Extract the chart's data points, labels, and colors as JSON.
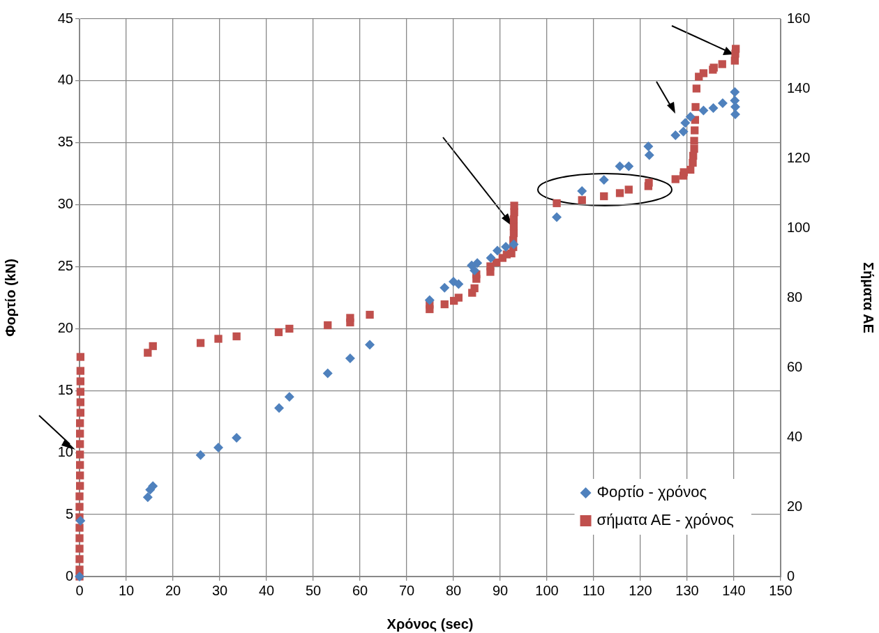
{
  "chart_data": {
    "type": "scatter",
    "xlabel": "Χρόνος (sec)",
    "ylabel": "Φορτίο (kN)",
    "y2label": "Σήματα ΑΕ",
    "xlim": [
      0,
      150
    ],
    "xticks": [
      0,
      10,
      20,
      30,
      40,
      50,
      60,
      70,
      80,
      90,
      100,
      110,
      120,
      130,
      140,
      150
    ],
    "ylim": [
      0,
      45
    ],
    "yticks": [
      0,
      5,
      10,
      15,
      20,
      25,
      30,
      35,
      40,
      45
    ],
    "y2lim": [
      0,
      160
    ],
    "y2ticks": [
      0,
      20,
      40,
      60,
      80,
      100,
      120,
      140,
      160
    ],
    "grid": true,
    "legend": "bottom right",
    "series": [
      {
        "name": "Φορτίο - χρόνος",
        "color": "#4f81bd",
        "marker": "diamond",
        "x": [
          0,
          0.2,
          14.6,
          15.1,
          15.7,
          25.9,
          29.7,
          33.6,
          42.7,
          44.9,
          53.1,
          57.9,
          62.1,
          74.9,
          78.1,
          80,
          81.1,
          83.9,
          84.5,
          85.1,
          88,
          89.4,
          91.2,
          92.9,
          102.1,
          107.5,
          112.2,
          115.6,
          117.5,
          121.7,
          121.9,
          127.5,
          129.2,
          129.6,
          130.7,
          133.5,
          135.6,
          137.6,
          140.2,
          140.2,
          140.3,
          140.3
        ],
        "values": [
          0,
          4.5,
          6.4,
          7.0,
          7.3,
          9.8,
          10.4,
          11.2,
          13.6,
          14.5,
          16.4,
          17.6,
          18.7,
          22.3,
          23.3,
          23.8,
          23.6,
          25.1,
          24.7,
          25.3,
          25.7,
          26.3,
          26.6,
          26.8,
          29.0,
          31.1,
          32.0,
          33.1,
          33.1,
          34.7,
          34.0,
          35.6,
          35.9,
          36.6,
          37.1,
          37.6,
          37.8,
          38.2,
          39.1,
          38.4,
          37.9,
          37.3
        ]
      },
      {
        "name": "σήματα ΑΕ - χρόνος",
        "color": "#c0504d",
        "marker": "square",
        "axis": "y2",
        "x": [
          0,
          0,
          0,
          0,
          0,
          0,
          0,
          0,
          0,
          0.1,
          0.1,
          0.1,
          0.1,
          0.1,
          0.1,
          0.1,
          0.2,
          0.2,
          0.2,
          0.2,
          0.2,
          0.2,
          14.6,
          15.7,
          25.9,
          29.7,
          33.6,
          42.6,
          44.9,
          53.1,
          57.9,
          57.9,
          62.1,
          74.9,
          74.9,
          78.1,
          80.1,
          81.1,
          84,
          84.5,
          84.9,
          84.9,
          87.9,
          87.9,
          89.2,
          90.5,
          91.4,
          92.4,
          92.8,
          92.8,
          92.9,
          92.9,
          92.9,
          93,
          93,
          102.1,
          107.5,
          112.2,
          115.6,
          117.5,
          121.7,
          121.8,
          127.5,
          129.2,
          129.3,
          130.7,
          131.2,
          131.3,
          131.5,
          131.5,
          131.6,
          131.7,
          131.8,
          132,
          132.5,
          133.5,
          135.5,
          135.7,
          137.5,
          140.2,
          140.3,
          140.4
        ],
        "values": [
          0,
          2,
          5,
          8,
          11,
          14,
          17,
          20,
          23,
          26,
          29,
          32,
          35,
          38,
          41,
          44,
          47,
          50,
          53,
          56,
          59,
          63,
          64.2,
          66.1,
          67,
          68.2,
          68.9,
          70.1,
          71.1,
          72.1,
          72.9,
          74.2,
          75.1,
          76.7,
          78,
          78.1,
          79.1,
          80,
          81.4,
          82.7,
          85.4,
          86.7,
          87.4,
          89,
          90.1,
          91.4,
          92.4,
          92.7,
          94.5,
          96.5,
          98.5,
          100.5,
          102.5,
          104.5,
          106.4,
          107.1,
          108,
          109.1,
          110,
          111,
          112,
          113,
          114,
          115,
          116,
          116.7,
          118.7,
          120.7,
          122.7,
          125,
          128,
          131,
          134.7,
          140,
          143.4,
          144.4,
          145.4,
          146,
          147,
          148,
          150,
          151.4
        ]
      }
    ]
  }
}
